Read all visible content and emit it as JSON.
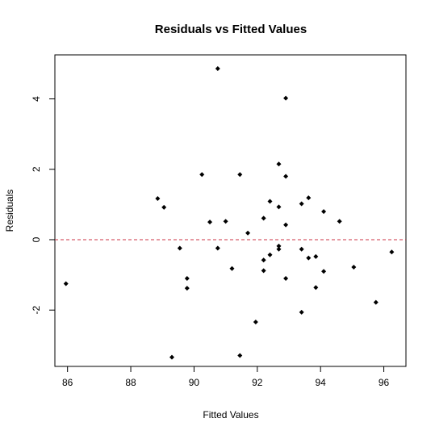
{
  "chart_data": {
    "type": "scatter",
    "title": "Residuals vs Fitted Values",
    "xlabel": "Fitted Values",
    "ylabel": "Residuals",
    "xlim": [
      85.6,
      96.7
    ],
    "ylim": [
      -3.6,
      5.25
    ],
    "x_ticks": [
      86,
      88,
      90,
      92,
      94,
      96
    ],
    "y_ticks": [
      -2,
      0,
      2,
      4
    ],
    "grid": false,
    "legend": "none",
    "reference_line": {
      "y": 0,
      "style": "dashed",
      "color": "#cc3344"
    },
    "point_color": "#000000",
    "points": [
      {
        "x": 85.95,
        "y": -1.25
      },
      {
        "x": 88.85,
        "y": 1.17
      },
      {
        "x": 89.05,
        "y": 0.92
      },
      {
        "x": 89.3,
        "y": -3.34
      },
      {
        "x": 89.55,
        "y": -0.24
      },
      {
        "x": 89.78,
        "y": -1.1
      },
      {
        "x": 89.78,
        "y": -1.38
      },
      {
        "x": 90.25,
        "y": 1.85
      },
      {
        "x": 90.5,
        "y": 0.5
      },
      {
        "x": 90.75,
        "y": 4.86
      },
      {
        "x": 90.75,
        "y": -0.24
      },
      {
        "x": 91.0,
        "y": 0.52
      },
      {
        "x": 91.2,
        "y": -0.82
      },
      {
        "x": 91.45,
        "y": 1.85
      },
      {
        "x": 91.45,
        "y": -3.29
      },
      {
        "x": 91.7,
        "y": 0.19
      },
      {
        "x": 91.95,
        "y": -2.34
      },
      {
        "x": 92.2,
        "y": 0.61
      },
      {
        "x": 92.2,
        "y": -0.58
      },
      {
        "x": 92.2,
        "y": -0.88
      },
      {
        "x": 92.4,
        "y": 1.09
      },
      {
        "x": 92.4,
        "y": -0.43
      },
      {
        "x": 92.68,
        "y": 2.15
      },
      {
        "x": 92.68,
        "y": 0.93
      },
      {
        "x": 92.68,
        "y": -0.18
      },
      {
        "x": 92.68,
        "y": -0.27
      },
      {
        "x": 92.9,
        "y": 4.02
      },
      {
        "x": 92.9,
        "y": 1.8
      },
      {
        "x": 92.9,
        "y": 0.42
      },
      {
        "x": 92.9,
        "y": -1.1
      },
      {
        "x": 93.4,
        "y": 1.02
      },
      {
        "x": 93.4,
        "y": -0.27
      },
      {
        "x": 93.4,
        "y": -2.06
      },
      {
        "x": 93.62,
        "y": 1.19
      },
      {
        "x": 93.62,
        "y": -0.52
      },
      {
        "x": 93.85,
        "y": -0.48
      },
      {
        "x": 93.85,
        "y": -1.36
      },
      {
        "x": 94.1,
        "y": 0.8
      },
      {
        "x": 94.1,
        "y": -0.9
      },
      {
        "x": 94.6,
        "y": 0.52
      },
      {
        "x": 95.05,
        "y": -0.78
      },
      {
        "x": 95.75,
        "y": -1.78
      },
      {
        "x": 96.25,
        "y": -0.35
      }
    ]
  }
}
